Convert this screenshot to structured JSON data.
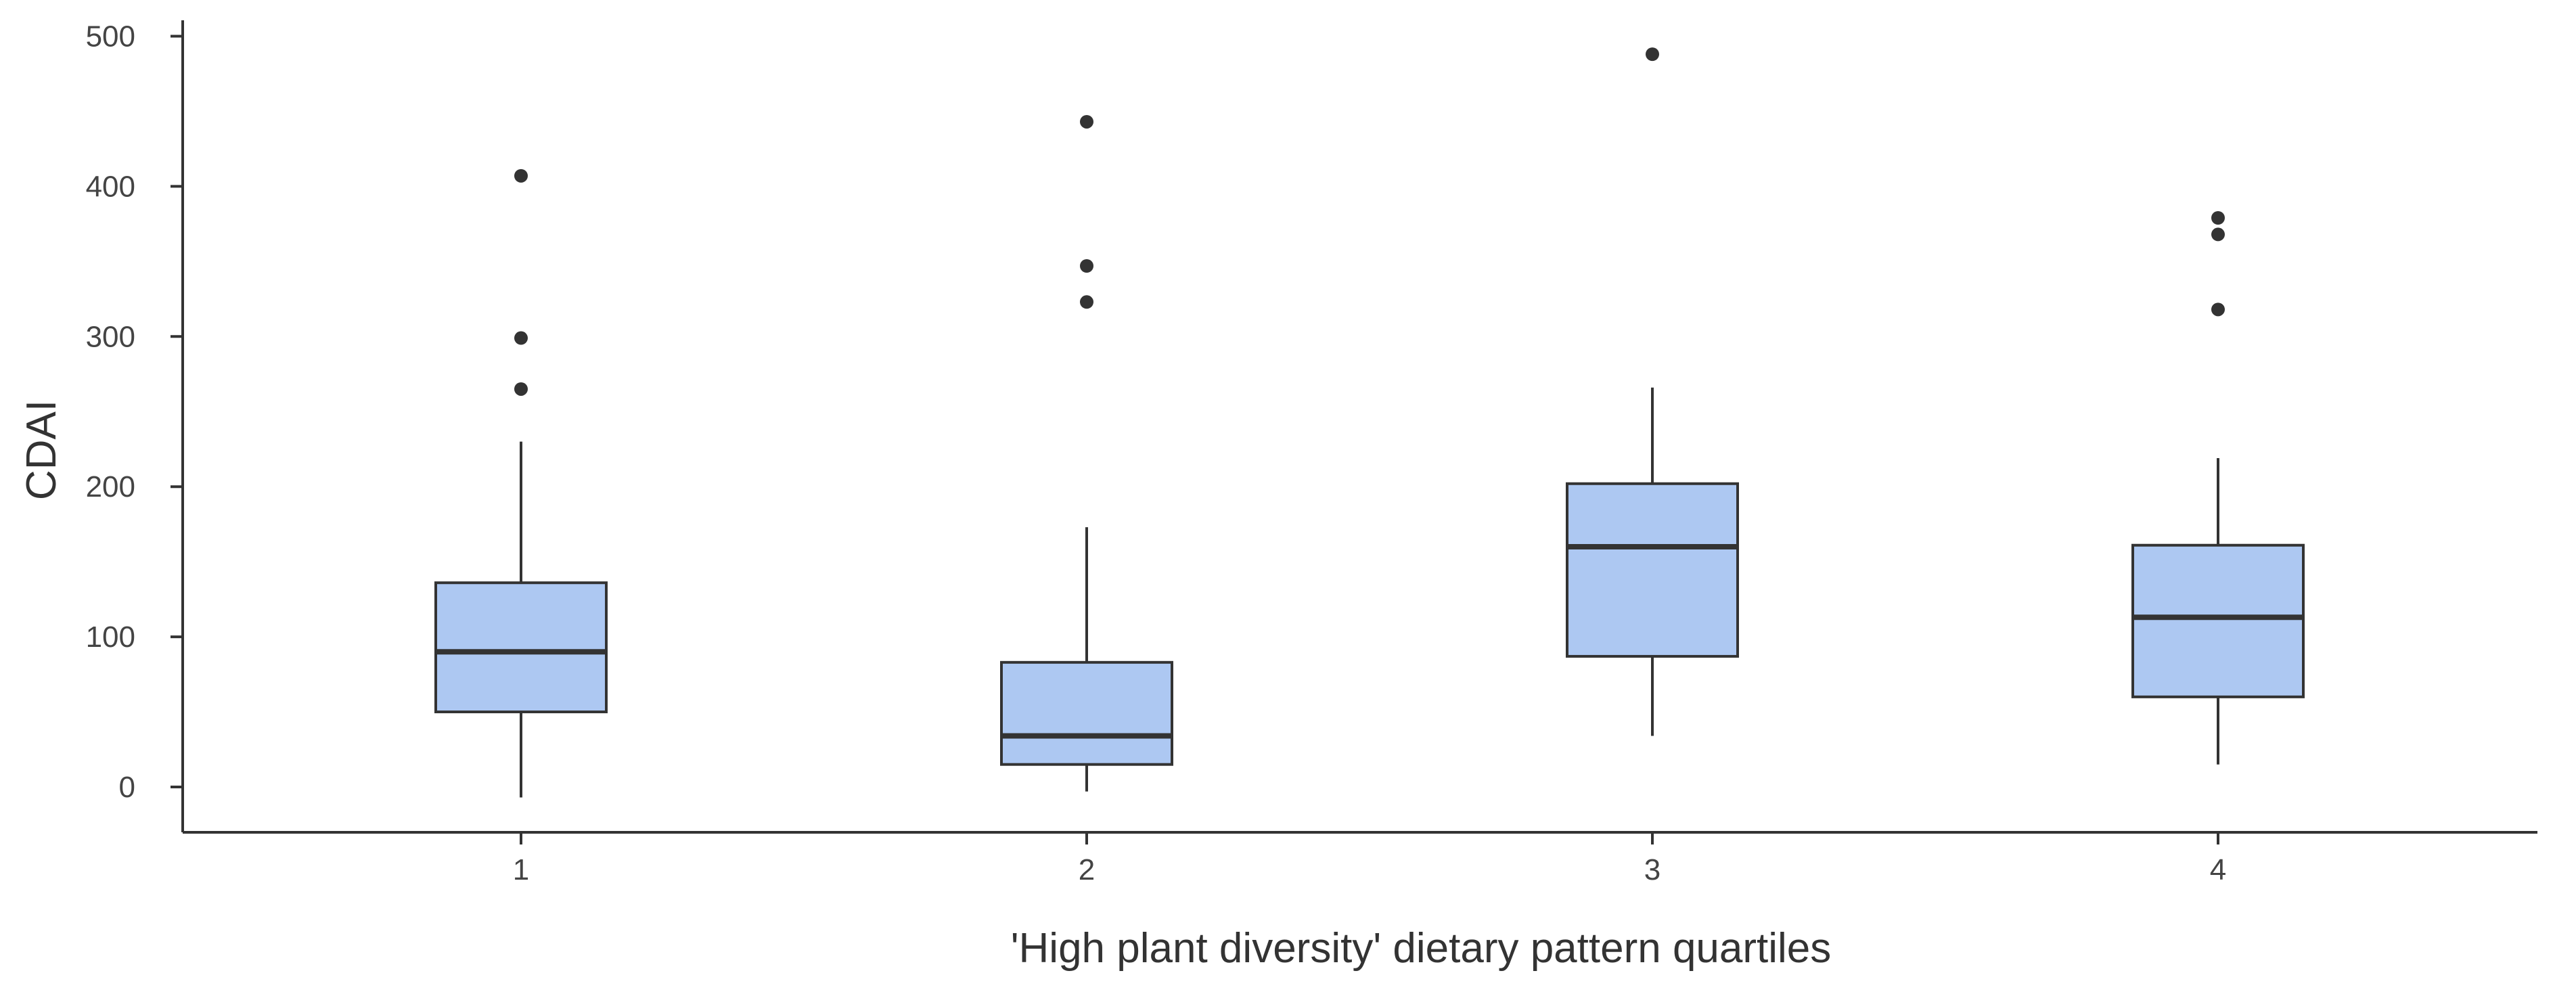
{
  "colors": {
    "box_fill": "#adc8f2",
    "line": "#333333",
    "background": "#ffffff"
  },
  "chart_data": {
    "type": "boxplot",
    "xlabel": "'High plant diversity' dietary pattern quartiles",
    "ylabel": "CDAI",
    "ylim": [
      -30,
      510
    ],
    "y_ticks": [
      0,
      100,
      200,
      300,
      400,
      500
    ],
    "y_tick_labels": [
      "0",
      "100",
      "200",
      "300",
      "400",
      "500"
    ],
    "grid": false,
    "legend": "none",
    "categories": [
      "1",
      "2",
      "3",
      "4"
    ],
    "boxes": [
      {
        "category": "1",
        "whisker_low": -7,
        "q1": 50,
        "median": 90,
        "q3": 136,
        "whisker_high": 230,
        "outliers": [
          265,
          299,
          407
        ]
      },
      {
        "category": "2",
        "whisker_low": -3,
        "q1": 15,
        "median": 34,
        "q3": 83,
        "whisker_high": 173,
        "outliers": [
          323,
          347,
          443
        ]
      },
      {
        "category": "3",
        "whisker_low": 34,
        "q1": 87,
        "median": 160,
        "q3": 202,
        "whisker_high": 266,
        "outliers": [
          488
        ]
      },
      {
        "category": "4",
        "whisker_low": 15,
        "q1": 60,
        "median": 113,
        "q3": 161,
        "whisker_high": 219,
        "outliers": [
          318,
          368,
          379
        ]
      }
    ]
  }
}
